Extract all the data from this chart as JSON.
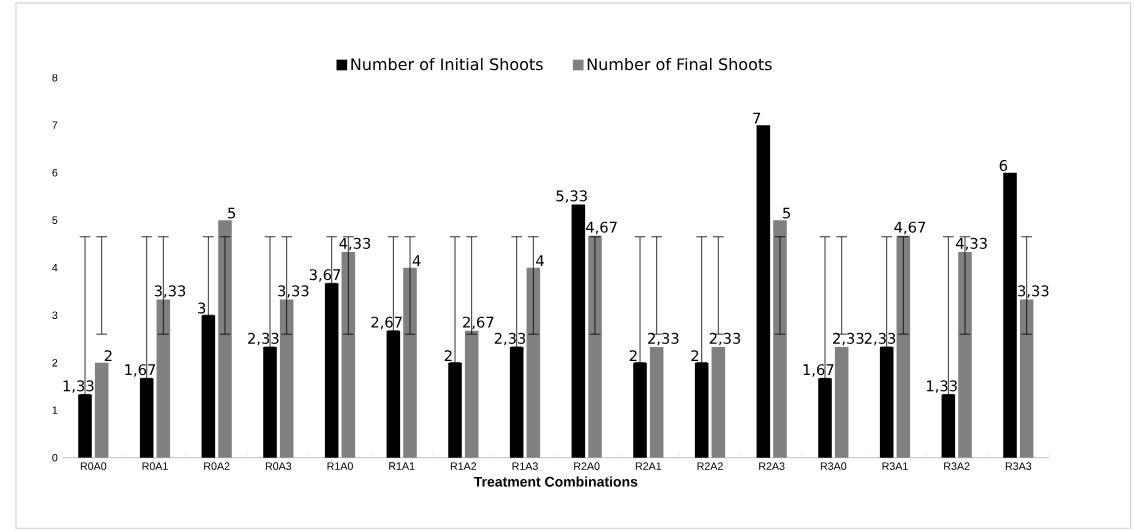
{
  "chart_data": {
    "type": "bar",
    "xlabel": "Treatment Combinations",
    "categories": [
      "R0A0",
      "R0A1",
      "R0A2",
      "R0A3",
      "R1A0",
      "R1A1",
      "R1A2",
      "R1A3",
      "R2A0",
      "R2A1",
      "R2A2",
      "R2A3",
      "R3A0",
      "R3A1",
      "R3A2",
      "R3A3"
    ],
    "series": [
      {
        "name": "Number of Initial Shoots",
        "color": "#000000",
        "values": [
          1.33,
          1.67,
          3,
          2.33,
          3.67,
          2.67,
          2,
          2.33,
          5.33,
          2,
          2,
          7,
          1.67,
          2.33,
          1.33,
          6
        ],
        "value_labels": [
          "1,33",
          "1,67",
          "3",
          "2,33",
          "3,67",
          "2,67",
          "2",
          "2,33",
          "5,33",
          "2",
          "2",
          "7",
          "1,67",
          "2,33",
          "1,33",
          "6"
        ],
        "errors": [
          [
            1.33,
            4.65
          ],
          [
            1.67,
            4.65
          ],
          [
            3,
            4.65
          ],
          [
            2.33,
            4.65
          ],
          [
            3.67,
            4.65
          ],
          [
            2.67,
            4.65
          ],
          [
            2,
            4.65
          ],
          [
            2.33,
            4.65
          ],
          null,
          [
            2,
            4.65
          ],
          [
            2,
            4.65
          ],
          null,
          [
            1.67,
            4.65
          ],
          [
            2.33,
            4.65
          ],
          [
            1.33,
            4.65
          ],
          null
        ]
      },
      {
        "name": "Number of Final Shoots",
        "color": "#808080",
        "values": [
          2,
          3.33,
          5,
          3.33,
          4.33,
          4,
          2.67,
          4,
          4.67,
          2.33,
          2.33,
          5,
          2.33,
          4.67,
          4.33,
          3.33
        ],
        "value_labels": [
          "2",
          "3,33",
          "5",
          "3,33",
          "4,33",
          "4",
          "2,67",
          "4",
          "4,67",
          "2,33",
          "2,33",
          "5",
          "2,33",
          "4,67",
          "4,33",
          "3,33"
        ],
        "errors": [
          [
            2.6,
            4.65
          ],
          [
            2.6,
            4.65
          ],
          [
            2.6,
            4.65
          ],
          [
            2.6,
            4.65
          ],
          [
            2.6,
            4.65
          ],
          [
            2.6,
            4.65
          ],
          [
            2.6,
            4.65
          ],
          [
            2.6,
            4.65
          ],
          [
            2.6,
            4.65
          ],
          [
            2.6,
            4.65
          ],
          [
            2.6,
            4.65
          ],
          [
            2.6,
            4.65
          ],
          [
            2.6,
            4.65
          ],
          [
            2.6,
            4.65
          ],
          [
            2.6,
            4.65
          ],
          [
            2.6,
            4.65
          ]
        ]
      }
    ],
    "ylim": [
      0,
      8
    ],
    "yticks": [
      0,
      1,
      2,
      3,
      4,
      5,
      6,
      7,
      8
    ],
    "grid": false,
    "legend": "top"
  }
}
